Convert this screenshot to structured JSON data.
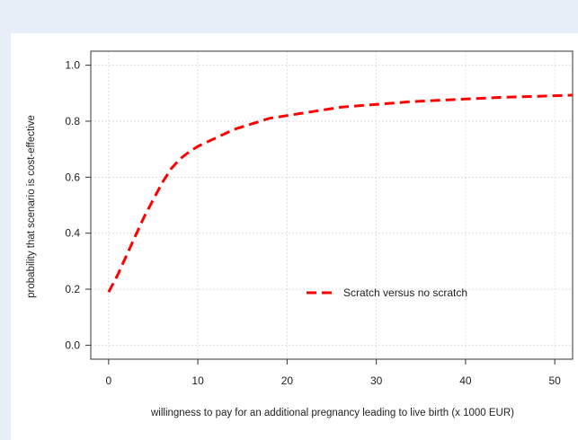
{
  "chart_data": {
    "type": "line",
    "xlabel": "willingness to pay for an additional pregnancy leading to live birth (x 1000 EUR)",
    "ylabel": "probability that scenario is cost-effective",
    "xlim": [
      -2,
      52
    ],
    "ylim": [
      -0.05,
      1.05
    ],
    "x_ticks": [
      0,
      10,
      20,
      30,
      40,
      50
    ],
    "y_ticks": [
      0.0,
      0.2,
      0.4,
      0.6,
      0.8,
      1.0
    ],
    "y_tick_labels": [
      "0.0",
      "0.2",
      "0.4",
      "0.6",
      "0.8",
      "1.0"
    ],
    "grid": true,
    "legend_position": "bottom-right",
    "series": [
      {
        "name": "Scratch versus no scratch",
        "color": "#ff0000",
        "line_style": "dashed",
        "x": [
          0,
          1,
          2,
          3,
          4,
          5,
          6,
          7,
          8,
          9,
          10,
          11,
          12,
          13,
          14,
          15,
          16,
          17,
          18,
          19,
          20,
          22,
          24,
          26,
          28,
          30,
          32,
          34,
          36,
          38,
          40,
          42,
          44,
          46,
          48,
          50,
          52
        ],
        "y": [
          0.19,
          0.25,
          0.32,
          0.39,
          0.46,
          0.52,
          0.58,
          0.63,
          0.665,
          0.69,
          0.71,
          0.725,
          0.74,
          0.755,
          0.77,
          0.78,
          0.79,
          0.8,
          0.81,
          0.815,
          0.82,
          0.83,
          0.84,
          0.85,
          0.855,
          0.86,
          0.865,
          0.87,
          0.873,
          0.876,
          0.879,
          0.882,
          0.885,
          0.887,
          0.889,
          0.891,
          0.893
        ]
      }
    ]
  }
}
